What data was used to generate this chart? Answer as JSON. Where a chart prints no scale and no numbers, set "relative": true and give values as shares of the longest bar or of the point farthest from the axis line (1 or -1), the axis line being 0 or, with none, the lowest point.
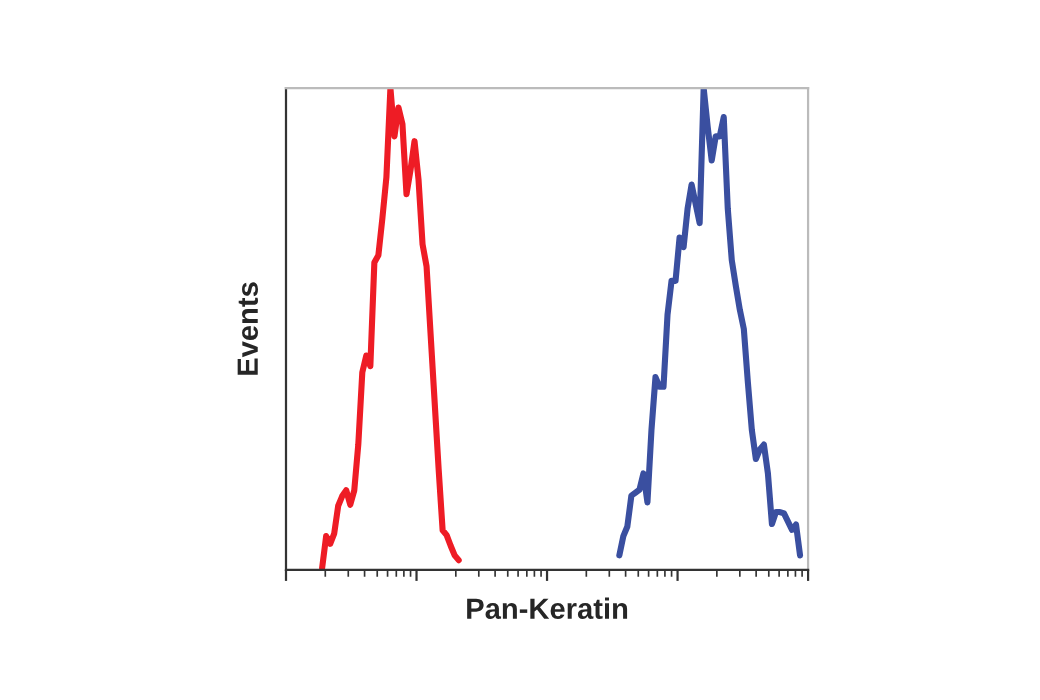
{
  "chart_data": {
    "type": "line",
    "relative": true,
    "xlabel": "Pan-Keratin",
    "ylabel": "Events",
    "tick_labels": false,
    "marker": "none",
    "line_style": "solid",
    "categories": [
      null,
      null,
      null,
      null,
      null,
      null,
      null,
      null,
      null,
      null,
      null,
      null,
      null,
      null,
      null,
      null,
      null,
      null,
      null,
      null,
      null,
      null,
      null,
      null,
      null,
      null,
      null,
      null,
      null,
      null,
      null,
      null,
      null,
      null,
      null,
      null,
      null,
      null,
      null,
      null,
      null,
      null,
      null,
      null,
      null,
      null,
      null,
      null,
      null,
      null,
      null,
      null,
      null,
      null,
      null,
      null,
      null,
      null,
      null,
      null,
      null,
      null,
      null,
      null,
      null,
      null,
      null,
      null,
      null,
      null,
      null,
      null,
      null,
      null,
      null,
      null,
      null,
      null,
      null,
      null,
      null,
      null,
      null,
      null,
      null,
      null,
      null,
      null,
      null,
      null,
      null,
      null,
      null,
      null,
      null,
      null,
      null,
      null,
      null,
      null,
      null,
      null,
      null,
      null,
      null,
      null,
      null,
      null,
      null,
      null,
      null,
      null,
      null,
      null,
      null,
      null,
      null,
      null,
      null,
      null,
      null,
      null,
      null,
      null,
      null,
      null,
      null,
      null,
      null,
      null,
      null
    ],
    "series": [
      {
        "color": "#ee1c25",
        "values": [
          null,
          null,
          null,
          null,
          null,
          null,
          null,
          null,
          null,
          0.004,
          0.07,
          0.054,
          0.075,
          0.133,
          0.153,
          0.165,
          0.135,
          0.165,
          0.26,
          0.41,
          0.445,
          0.423,
          0.638,
          0.653,
          0.73,
          0.815,
          1.0,
          0.9,
          0.96,
          0.925,
          0.78,
          0.83,
          0.89,
          0.81,
          0.676,
          0.63,
          0.49,
          0.35,
          0.21,
          0.082,
          0.072,
          0.05,
          0.03,
          0.02,
          null,
          null,
          null,
          null,
          null,
          null,
          null,
          null,
          null,
          null,
          null,
          null,
          null,
          null,
          null,
          null,
          null,
          null,
          null,
          null,
          null,
          null,
          null,
          null,
          null,
          null,
          null,
          null,
          null,
          null,
          null,
          null,
          null,
          null,
          null,
          null,
          null,
          null,
          null,
          null,
          null,
          null,
          null,
          null,
          null,
          null,
          null,
          null,
          null,
          null,
          null,
          null,
          null,
          null,
          null,
          null,
          null,
          null,
          null,
          null,
          null,
          null,
          null,
          null,
          null,
          null,
          null,
          null,
          null,
          null,
          null,
          null,
          null,
          null,
          null,
          null,
          null,
          null,
          null,
          null,
          null,
          null,
          null,
          null,
          null,
          null,
          null
        ]
      },
      {
        "color": "#3a4fa0",
        "values": [
          null,
          null,
          null,
          null,
          null,
          null,
          null,
          null,
          null,
          null,
          null,
          null,
          null,
          null,
          null,
          null,
          null,
          null,
          null,
          null,
          null,
          null,
          null,
          null,
          null,
          null,
          null,
          null,
          null,
          null,
          null,
          null,
          null,
          null,
          null,
          null,
          null,
          null,
          null,
          null,
          null,
          null,
          null,
          null,
          null,
          null,
          null,
          null,
          null,
          null,
          null,
          null,
          null,
          null,
          null,
          null,
          null,
          null,
          null,
          null,
          null,
          null,
          null,
          null,
          null,
          null,
          null,
          null,
          null,
          null,
          null,
          null,
          null,
          null,
          null,
          null,
          null,
          null,
          null,
          null,
          null,
          null,
          null,
          0.03,
          0.07,
          0.09,
          0.154,
          0.16,
          0.166,
          0.2,
          0.14,
          0.29,
          0.4,
          0.38,
          0.38,
          0.53,
          0.6,
          0.6,
          0.69,
          0.67,
          0.75,
          0.8,
          0.76,
          0.72,
          1.0,
          0.92,
          0.85,
          0.9,
          0.9,
          0.94,
          0.75,
          0.643,
          0.59,
          0.54,
          0.5,
          0.39,
          0.29,
          0.23,
          0.25,
          0.26,
          0.2,
          0.095,
          0.12,
          0.12,
          0.117,
          0.1,
          0.083,
          0.094,
          0.03,
          null,
          null
        ]
      }
    ]
  }
}
